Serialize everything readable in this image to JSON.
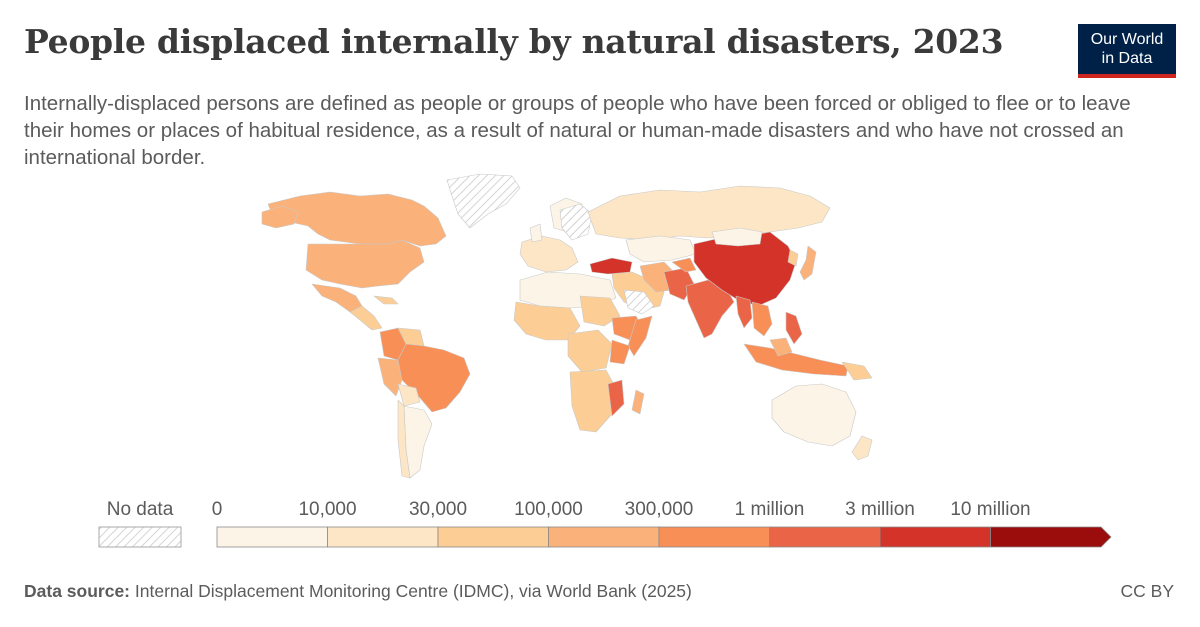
{
  "header": {
    "title": "People displaced internally by natural disasters, 2023",
    "subtitle": "Internally-displaced persons are defined as people or groups of people who have been forced or obliged to flee or to leave their homes or places of habitual residence, as a result of natural or human-made disasters and who have not crossed an international border."
  },
  "logo": {
    "line1": "Our World",
    "line2": "in Data",
    "bg_color": "#002147",
    "accent_color": "#ce261e"
  },
  "legend": {
    "no_data_label": "No data",
    "bins": [
      {
        "label": "0",
        "color": "#fdf4e8"
      },
      {
        "label": "10,000",
        "color": "#fde6c6"
      },
      {
        "label": "30,000",
        "color": "#fcce95"
      },
      {
        "label": "100,000",
        "color": "#fbb27a"
      },
      {
        "label": "300,000",
        "color": "#f88f57"
      },
      {
        "label": "1 million",
        "color": "#ea6547"
      },
      {
        "label": "3 million",
        "color": "#d4332a"
      },
      {
        "label": "10 million",
        "color": "#9b0d0d"
      }
    ]
  },
  "footer": {
    "source_label": "Data source:",
    "source_text": "Internal Displacement Monitoring Centre (IDMC), via World Bank (2025)",
    "license": "CC BY"
  }
}
